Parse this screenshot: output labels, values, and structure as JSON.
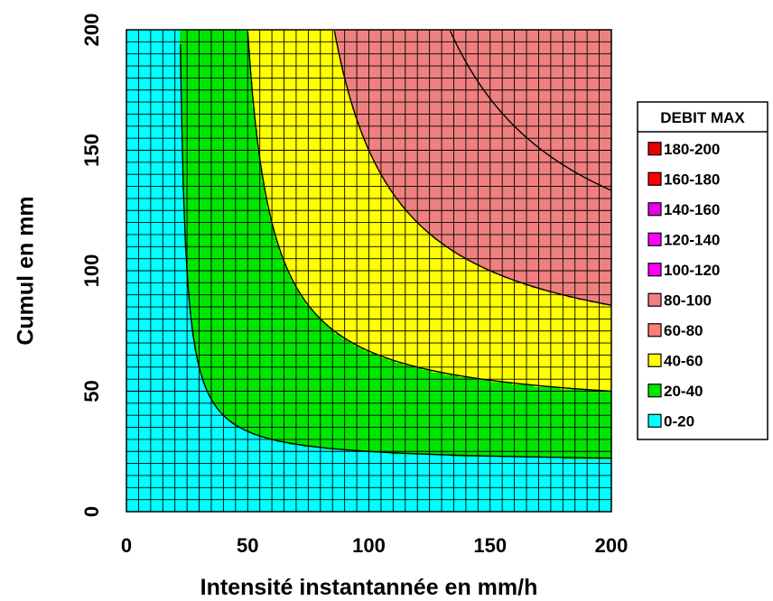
{
  "chart_data": {
    "type": "heatmap",
    "xlabel": "Intensité instantannée en mm/h",
    "ylabel": "Cumul en mm",
    "xlim": [
      0,
      200
    ],
    "ylim": [
      0,
      200
    ],
    "x_ticks": [
      "0",
      "50",
      "100",
      "150",
      "200"
    ],
    "y_ticks": [
      "0",
      "50",
      "100",
      "150",
      "200"
    ],
    "grid": true,
    "legend_position": "right",
    "legend": {
      "title": "DEBIT MAX",
      "entries": [
        {
          "label": "180-200",
          "color": "#e60000"
        },
        {
          "label": "160-180",
          "color": "#ff0000"
        },
        {
          "label": "140-160",
          "color": "#e600e6"
        },
        {
          "label": "120-140",
          "color": "#ff00ff"
        },
        {
          "label": "100-120",
          "color": "#ff00ff"
        },
        {
          "label": "80-100",
          "color": "#f08080"
        },
        {
          "label": "60-80",
          "color": "#fa8072"
        },
        {
          "label": "40-60",
          "color": "#ffff00"
        },
        {
          "label": "20-40",
          "color": "#00e600"
        },
        {
          "label": "0-20",
          "color": "#00ffff"
        }
      ]
    },
    "contour_levels": [
      20,
      40,
      60,
      80,
      100,
      120,
      140,
      160,
      180
    ],
    "bands": [
      {
        "range": "0-20",
        "color": "#00ffff"
      },
      {
        "range": "20-40",
        "color": "#00e600"
      },
      {
        "range": "40-60",
        "color": "#ffff00"
      },
      {
        "range": "60-100",
        "color": "#f08080"
      },
      {
        "range": "100-160",
        "color": "#ff00ff"
      },
      {
        "range": "160-200",
        "color": "#e60000"
      }
    ]
  }
}
